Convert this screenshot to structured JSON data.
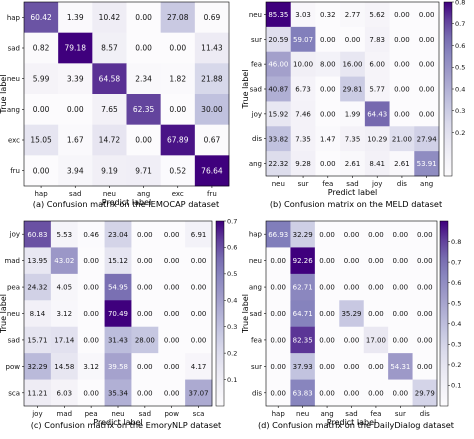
{
  "colors": {
    "low": "#f7f5fb",
    "high": "#3f007d"
  },
  "chart_data": [
    {
      "type": "heatmap",
      "caption": "(a) Confusion matrix on the IEMOCAP dataset",
      "xlabel": "Predict label",
      "ylabel": "True label",
      "x_categories": [
        "hap",
        "sad",
        "neu",
        "ang",
        "exc",
        "fru"
      ],
      "y_categories": [
        "hap",
        "sad",
        "neu",
        "ang",
        "exc",
        "fru"
      ],
      "values": [
        [
          60.42,
          1.39,
          10.42,
          0.0,
          27.08,
          0.69
        ],
        [
          0.82,
          79.18,
          8.57,
          0.0,
          0.0,
          11.43
        ],
        [
          5.99,
          3.39,
          64.58,
          2.34,
          1.82,
          21.88
        ],
        [
          0.0,
          0.0,
          7.65,
          62.35,
          0.0,
          30.0
        ],
        [
          15.05,
          1.67,
          14.72,
          0.0,
          67.89,
          0.67
        ],
        [
          0.0,
          3.94,
          9.19,
          9.71,
          0.52,
          76.64
        ]
      ],
      "colorbar": {
        "range": [
          0,
          0.7
        ],
        "ticks": []
      }
    },
    {
      "type": "heatmap",
      "caption": "(b) Confusion matrix on the MELD dataset",
      "xlabel": "Predict label",
      "ylabel": "True label",
      "x_categories": [
        "neu",
        "sur",
        "fea",
        "sad",
        "joy",
        "dis",
        "ang"
      ],
      "y_categories": [
        "neu",
        "sur",
        "fea",
        "sad",
        "joy",
        "dis",
        "ang"
      ],
      "values": [
        [
          85.35,
          3.03,
          0.32,
          2.77,
          5.62,
          0.0,
          0.0
        ],
        [
          20.59,
          59.07,
          0.0,
          0.0,
          7.83,
          0.0,
          0.0
        ],
        [
          46.0,
          10.0,
          8.0,
          16.0,
          6.0,
          0.0,
          0.0
        ],
        [
          40.87,
          6.73,
          0.0,
          29.81,
          5.77,
          0.0,
          0.0
        ],
        [
          15.92,
          7.46,
          0.0,
          1.99,
          64.43,
          0.0,
          0.0
        ],
        [
          33.82,
          7.35,
          1.47,
          7.35,
          10.29,
          21.0,
          27.94
        ],
        [
          22.32,
          9.28,
          0.0,
          2.61,
          8.41,
          2.61,
          53.91
        ]
      ],
      "colorbar": {
        "range": [
          0,
          0.8
        ],
        "ticks": [
          "0.8",
          "0.7",
          "0.6",
          "0.5",
          "0.4",
          "0.3",
          "0.2"
        ]
      }
    },
    {
      "type": "heatmap",
      "caption": "(c) Confusion matrix on the EmoryNLP dataset",
      "xlabel": "Predict label",
      "ylabel": "True label",
      "x_categories": [
        "joy",
        "mad",
        "pea",
        "neu",
        "sad",
        "pow",
        "sca"
      ],
      "y_categories": [
        "joy",
        "mad",
        "pea",
        "neu",
        "sad",
        "pow",
        "sca"
      ],
      "values": [
        [
          60.83,
          5.53,
          0.46,
          23.04,
          0.0,
          0.0,
          6.91
        ],
        [
          13.95,
          43.02,
          0.0,
          15.12,
          0.0,
          0.0,
          0.0
        ],
        [
          24.32,
          4.05,
          0.0,
          54.95,
          0.0,
          0.0,
          0.0
        ],
        [
          8.14,
          3.12,
          0.0,
          70.49,
          0.0,
          0.0,
          0.0
        ],
        [
          15.71,
          17.14,
          0.0,
          31.43,
          28.0,
          0.0,
          0.0
        ],
        [
          32.29,
          14.58,
          3.12,
          39.58,
          0.0,
          0.0,
          4.17
        ],
        [
          11.21,
          6.03,
          0.0,
          35.34,
          0.0,
          0.0,
          37.07
        ]
      ],
      "colorbar": {
        "range": [
          0,
          0.7
        ],
        "ticks": [
          "0.7",
          "0.6",
          "0.5",
          "0.4",
          "0.3",
          "0.2",
          "0.1"
        ]
      }
    },
    {
      "type": "heatmap",
      "caption": "(d) Confusion matrix on the DailyDialog dataset",
      "xlabel": "Predict label",
      "ylabel": "True label",
      "x_categories": [
        "hap",
        "neu",
        "ang",
        "sad",
        "fea",
        "sur",
        "dis"
      ],
      "y_categories": [
        "hap",
        "neu",
        "ang",
        "sad",
        "fea",
        "sur",
        "dis"
      ],
      "values": [
        [
          66.93,
          32.29,
          0.0,
          0.0,
          0.0,
          0.0,
          0.0
        ],
        [
          0.0,
          92.26,
          0.0,
          0.0,
          0.0,
          0.0,
          0.0
        ],
        [
          0.0,
          62.71,
          0.0,
          0.0,
          0.0,
          0.0,
          0.0
        ],
        [
          0.0,
          64.71,
          0.0,
          35.29,
          0.0,
          0.0,
          0.0
        ],
        [
          0.0,
          82.35,
          0.0,
          0.0,
          17.0,
          0.0,
          0.0
        ],
        [
          0.0,
          37.93,
          0.0,
          0.0,
          0.0,
          54.31,
          0.0
        ],
        [
          0.0,
          63.83,
          0.0,
          0.0,
          0.0,
          0.0,
          29.79
        ]
      ],
      "colorbar": {
        "range": [
          0,
          0.9
        ],
        "ticks": [
          "0.8",
          "0.7",
          "0.6",
          "0.5",
          "0.4",
          "0.3",
          "0.2",
          "0.1"
        ]
      }
    }
  ]
}
